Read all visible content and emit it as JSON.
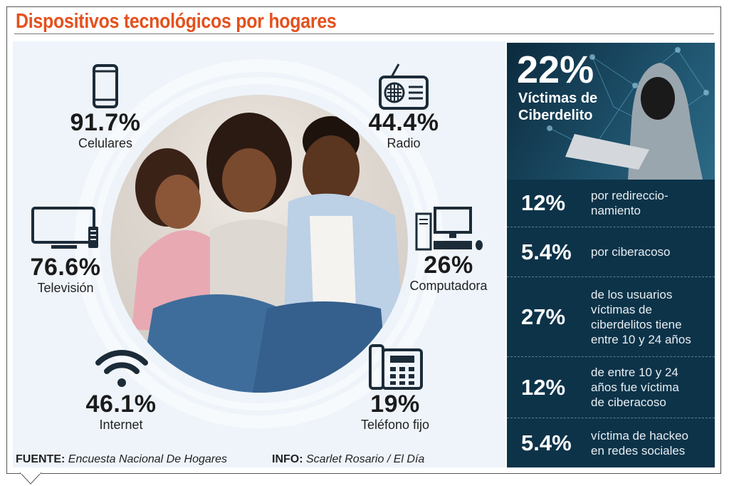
{
  "title": "Dispositivos tecnológicos por hogares",
  "devices": [
    {
      "value": "91.7%",
      "label": "Celulares",
      "icon": "smartphone-icon"
    },
    {
      "value": "44.4%",
      "label": "Radio",
      "icon": "radio-icon"
    },
    {
      "value": "76.6%",
      "label": "Televisión",
      "icon": "television-icon"
    },
    {
      "value": "26%",
      "label": "Computadora",
      "icon": "computer-icon"
    },
    {
      "value": "46.1%",
      "label": "Internet",
      "icon": "wifi-icon"
    },
    {
      "value": "19%",
      "label": "Teléfono fijo",
      "icon": "landline-phone-icon"
    }
  ],
  "cyber": {
    "headline_value": "22%",
    "headline_label_1": "Víctimas de",
    "headline_label_2": "Ciberdelito",
    "stats": [
      {
        "value": "12%",
        "text": "por redireccio-\nnamiento"
      },
      {
        "value": "5.4%",
        "text": "por ciberacoso"
      },
      {
        "value": "27%",
        "text": "de los usuarios\nvíctimas de\nciberdelitos tiene\nentre 10 y 24 años"
      },
      {
        "value": "12%",
        "text": "de entre 10 y 24\naños fue víctima\nde ciberacoso"
      },
      {
        "value": "5.4%",
        "text": "víctima de hackeo\nen redes sociales"
      }
    ]
  },
  "footer": {
    "source_label": "FUENTE:",
    "source": "Encuesta Nacional De Hogares",
    "info_label": "INFO:",
    "info": "Scarlet Rosario / El Día"
  },
  "colors": {
    "title": "#e4511e",
    "dark_panel": "#0d3349",
    "icon": "#1c2b38"
  }
}
